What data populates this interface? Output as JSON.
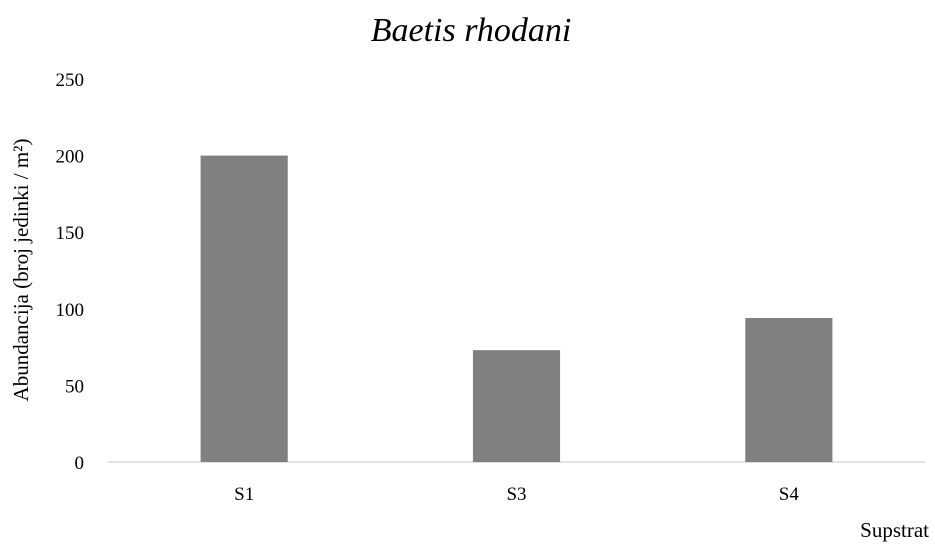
{
  "chart_data": {
    "type": "bar",
    "title": "Baetis rhodani",
    "xlabel": "Supstrat",
    "ylabel": "Abundancija (broj jedinki / m²)",
    "categories": [
      "S1",
      "S3",
      "S4"
    ],
    "values": [
      200,
      73,
      94
    ],
    "ylim": [
      0,
      250
    ],
    "yticks": [
      0,
      50,
      100,
      150,
      200,
      250
    ],
    "grid": false,
    "legend": "none",
    "colors": {
      "bar": "#808080",
      "axis": "#d9d9d9"
    }
  }
}
